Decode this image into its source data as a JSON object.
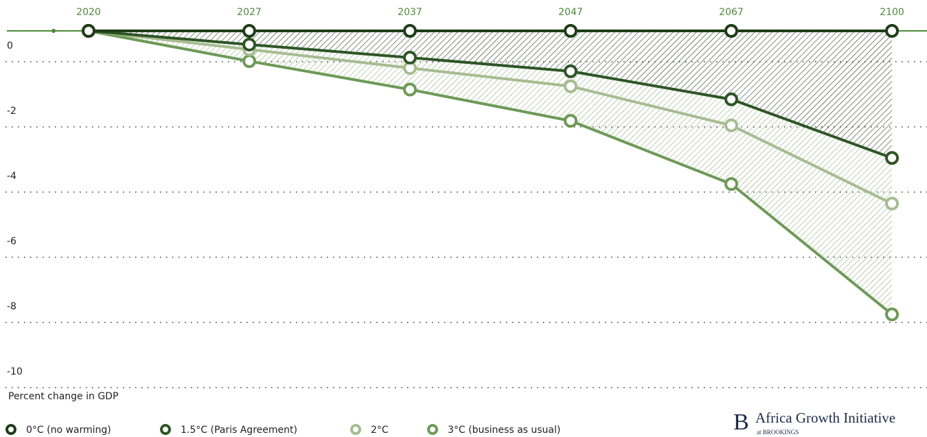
{
  "chart_data": {
    "type": "line",
    "y_label": "Percent change in GDP",
    "categories": [
      "2020",
      "2027",
      "2037",
      "2047",
      "2067",
      "2100"
    ],
    "series": [
      {
        "name": "0°C (no warming)",
        "color": "#1e3d18",
        "values": [
          0,
          0,
          0,
          0,
          0,
          0
        ]
      },
      {
        "name": "1.5°C (Paris Agreement)",
        "color": "#2f5526",
        "values": [
          0,
          -0.42,
          -0.82,
          -1.24,
          -2.1,
          -3.9
        ]
      },
      {
        "name": "2°C",
        "color": "#a6bc91",
        "values": [
          0,
          -0.57,
          -1.14,
          -1.7,
          -2.9,
          -5.3
        ]
      },
      {
        "name": "3°C (business as usual)",
        "color": "#6d9a57",
        "values": [
          0,
          -0.93,
          -1.8,
          -2.76,
          -4.7,
          -8.7
        ]
      }
    ],
    "ylim": [
      -10,
      0
    ],
    "yticks": [
      0,
      -2,
      -4,
      -6,
      -8,
      -10
    ],
    "grid": true,
    "logo": {
      "letter": "B",
      "name": "Africa Growth Initiative",
      "sub": "at BROOKINGS"
    }
  }
}
